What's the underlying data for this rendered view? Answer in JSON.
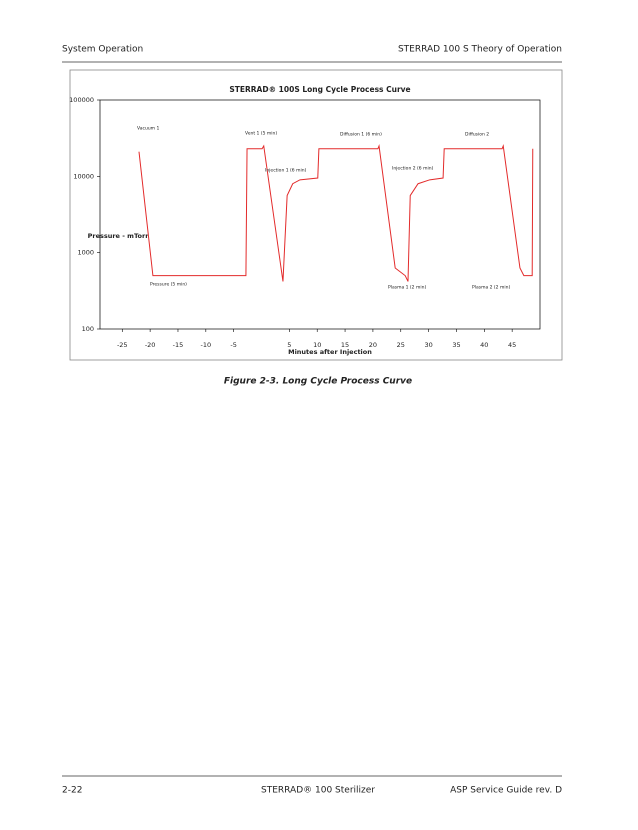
{
  "header": {
    "left": "System Operation",
    "right": "STERRAD 100 S Theory of Operation"
  },
  "chart_data": {
    "type": "line",
    "title": "STERRAD® 100S Long Cycle Process Curve",
    "y_label": "Pressure - mTorr",
    "x_label": "Minutes after Injection",
    "log_y": true,
    "xlim": [
      -29,
      50
    ],
    "ylim": [
      100,
      100000
    ],
    "xticks": [
      -25,
      -20,
      -15,
      -10,
      -5,
      5,
      10,
      15,
      20,
      25,
      30,
      35,
      40,
      45
    ],
    "yticks": [
      100,
      1000,
      10000,
      100000
    ],
    "grid": false,
    "series": [
      {
        "name": "Pressure",
        "color": "#e32b2b",
        "x": [
          -22.0,
          -19.5,
          -2.8,
          -2.6,
          0.1,
          0.4,
          3.85,
          4.6,
          5.6,
          6.9,
          10.1,
          10.3,
          20.9,
          21.1,
          24.0,
          25.8,
          26.3,
          26.7,
          28.1,
          30.2,
          32.6,
          32.8,
          43.2,
          43.4,
          46.4,
          47.1,
          48.6,
          48.7
        ],
        "values": [
          21000,
          500,
          500,
          23000,
          23000,
          25000,
          420,
          5600,
          8000,
          9000,
          9500,
          23000,
          23000,
          25000,
          630,
          500,
          420,
          5600,
          8000,
          9000,
          9500,
          23000,
          23000,
          25000,
          630,
          500,
          500,
          23000
        ]
      }
    ],
    "annotations": [
      "Vacuum 1",
      "Pressure (5 min)",
      "Vent 1 (5 min)",
      "Injection 1 (6 min)",
      "Diffusion 1 (6 min)",
      "Injection 2 (6 min)",
      "Plasma 1 (2 min)",
      "Diffusion 2",
      "Plasma 2 (2 min)"
    ]
  },
  "caption": "Figure 2-3. Long Cycle Process Curve",
  "footer": {
    "left": "2-22",
    "center": "STERRAD® 100 Sterilizer",
    "right": "ASP Service Guide rev. D"
  }
}
